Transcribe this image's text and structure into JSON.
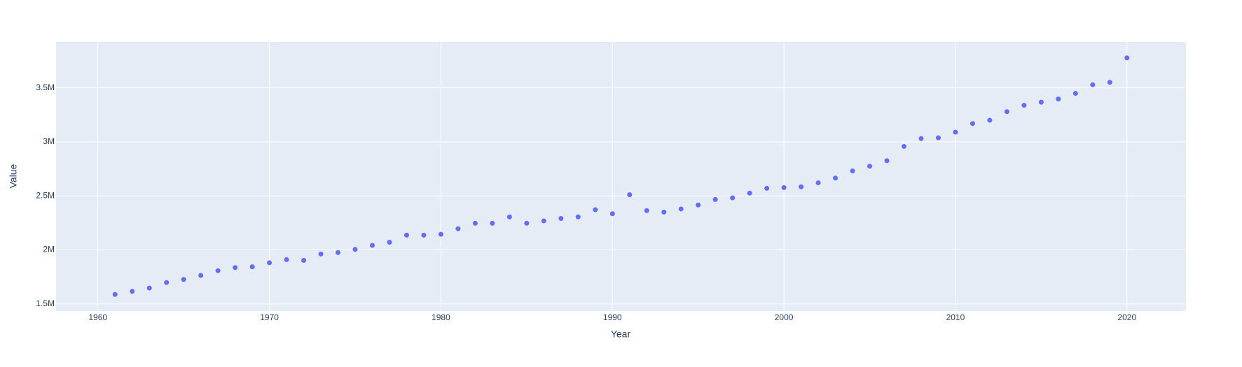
{
  "chart_data": {
    "type": "scatter",
    "x_label": "Year",
    "y_label": "Value",
    "x": [
      1961,
      1962,
      1963,
      1964,
      1965,
      1966,
      1967,
      1968,
      1969,
      1970,
      1971,
      1972,
      1973,
      1974,
      1975,
      1976,
      1977,
      1978,
      1979,
      1980,
      1981,
      1982,
      1983,
      1984,
      1985,
      1986,
      1987,
      1988,
      1989,
      1990,
      1991,
      1992,
      1993,
      1994,
      1995,
      1996,
      1997,
      1998,
      1999,
      2000,
      2001,
      2002,
      2003,
      2004,
      2005,
      2006,
      2007,
      2008,
      2009,
      2010,
      2011,
      2012,
      2013,
      2014,
      2015,
      2016,
      2017,
      2018,
      2019,
      2020
    ],
    "values": [
      1588000,
      1617000,
      1647000,
      1698000,
      1727000,
      1764000,
      1808000,
      1837000,
      1844000,
      1881000,
      1910000,
      1903000,
      1962000,
      1976000,
      2005000,
      2042000,
      2071000,
      2137000,
      2137000,
      2145000,
      2196000,
      2247000,
      2247000,
      2306000,
      2247000,
      2269000,
      2291000,
      2306000,
      2372000,
      2335000,
      2511000,
      2364000,
      2350000,
      2379000,
      2416000,
      2467000,
      2482000,
      2526000,
      2570000,
      2577000,
      2584000,
      2621000,
      2665000,
      2731000,
      2775000,
      2826000,
      2958000,
      3031000,
      3038000,
      3090000,
      3170000,
      3200000,
      3280000,
      3339000,
      3368000,
      3397000,
      3449000,
      3529000,
      3551000,
      3778000
    ],
    "color": "#636efa",
    "xlim": [
      1957.56,
      2023.44
    ],
    "xticks": [
      1960,
      1970,
      1980,
      1990,
      2000,
      2010,
      2020
    ],
    "ylim": [
      1434000,
      3925000
    ],
    "yticks": [
      {
        "value": 1500000,
        "label": "1.5M"
      },
      {
        "value": 2000000,
        "label": "2M"
      },
      {
        "value": 2500000,
        "label": "2.5M"
      },
      {
        "value": 3000000,
        "label": "3M"
      },
      {
        "value": 3500000,
        "label": "3.5M"
      }
    ],
    "grid": true
  }
}
